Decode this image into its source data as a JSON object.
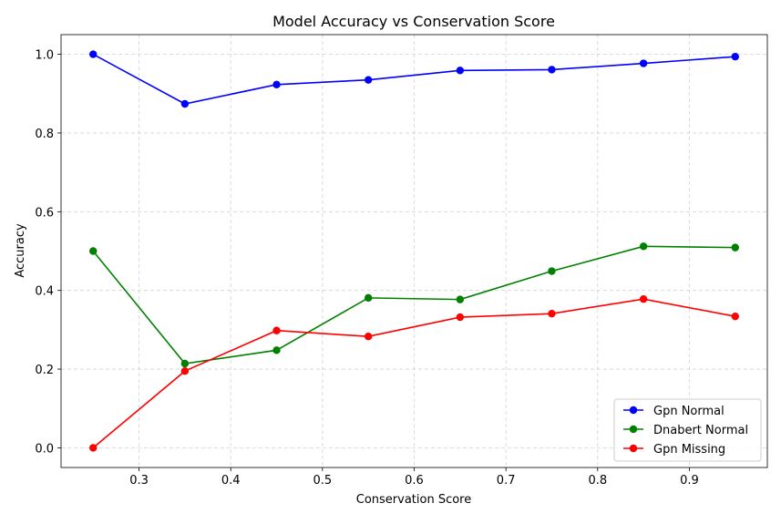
{
  "chart_data": {
    "type": "line",
    "title": "Model Accuracy vs Conservation Score",
    "xlabel": "Conservation Score",
    "ylabel": "Accuracy",
    "xlim": [
      0.215,
      0.985
    ],
    "ylim": [
      -0.05,
      1.05
    ],
    "xticks": [
      0.3,
      0.4,
      0.5,
      0.6,
      0.7,
      0.8,
      0.9
    ],
    "yticks": [
      0.0,
      0.2,
      0.4,
      0.6,
      0.8,
      1.0
    ],
    "grid": true,
    "legend_position": "lower-right",
    "x": [
      0.25,
      0.35,
      0.45,
      0.55,
      0.65,
      0.75,
      0.85,
      0.95
    ],
    "series": [
      {
        "name": "Gpn Normal",
        "color": "#0000ff",
        "marker": "circle",
        "values": [
          1.0,
          0.874,
          0.923,
          0.935,
          0.959,
          0.961,
          0.977,
          0.994
        ]
      },
      {
        "name": "Dnabert Normal",
        "color": "#008000",
        "marker": "circle",
        "values": [
          0.5,
          0.214,
          0.248,
          0.381,
          0.377,
          0.449,
          0.512,
          0.509
        ]
      },
      {
        "name": "Gpn Missing",
        "color": "#ff0000",
        "marker": "circle",
        "values": [
          0.0,
          0.195,
          0.298,
          0.283,
          0.332,
          0.341,
          0.378,
          0.334
        ]
      }
    ]
  }
}
